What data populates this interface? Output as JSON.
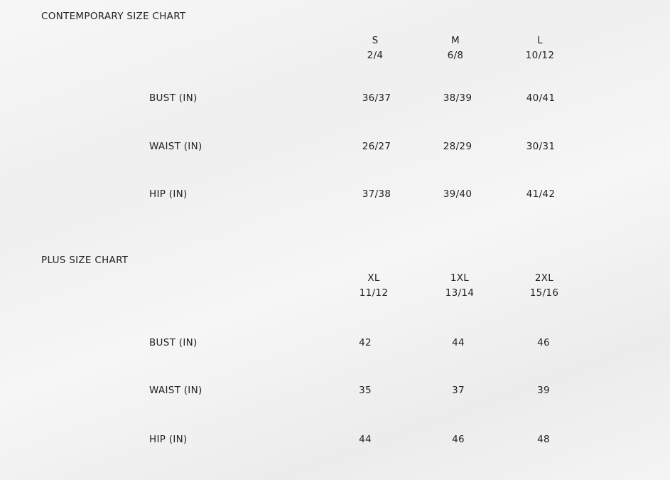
{
  "charts": [
    {
      "title": "CONTEMPORARY SIZE CHART",
      "columns": [
        {
          "size": "S",
          "numeric": "2/4"
        },
        {
          "size": "M",
          "numeric": "6/8"
        },
        {
          "size": "L",
          "numeric": "10/12"
        }
      ],
      "rows": [
        {
          "label": "BUST (IN)",
          "values": [
            "36/37",
            "38/39",
            "40/41"
          ]
        },
        {
          "label": "WAIST (IN)",
          "values": [
            "26/27",
            "28/29",
            "30/31"
          ]
        },
        {
          "label": "HIP (IN)",
          "values": [
            "37/38",
            "39/40",
            "41/42"
          ]
        }
      ]
    },
    {
      "title": "PLUS SIZE CHART",
      "columns": [
        {
          "size": "XL",
          "numeric": "11/12"
        },
        {
          "size": "1XL",
          "numeric": "13/14"
        },
        {
          "size": "2XL",
          "numeric": "15/16"
        }
      ],
      "rows": [
        {
          "label": "BUST (IN)",
          "values": [
            "42",
            "44",
            "46"
          ]
        },
        {
          "label": "WAIST (IN)",
          "values": [
            "35",
            "37",
            "39"
          ]
        },
        {
          "label": "HIP (IN)",
          "values": [
            "44",
            "46",
            "48"
          ]
        }
      ]
    }
  ]
}
